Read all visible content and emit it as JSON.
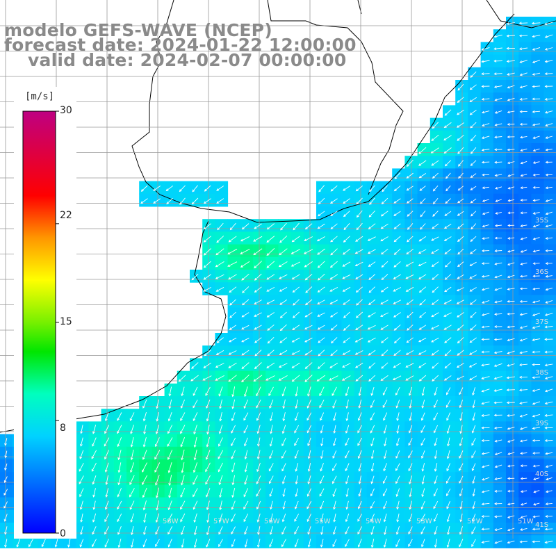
{
  "title": {
    "line1": "modelo GEFS-WAVE (NCEP)",
    "line2": "forecast date: 2024-01-22 12:00:00",
    "line3": "valid date: 2024-02-07 00:00:00"
  },
  "colorbar": {
    "unit": "[m/s]",
    "min": 0,
    "max": 30,
    "ticks": [
      "30",
      "22",
      "15",
      "8",
      "0"
    ],
    "tick_values": [
      30,
      22,
      15,
      8,
      0
    ],
    "colors": [
      "#0000ff",
      "#00c8ff",
      "#00ffc8",
      "#00e600",
      "#ffff00",
      "#ff8000",
      "#ff0000",
      "#c00080"
    ]
  },
  "grid": {
    "lat_labels": [
      "35S",
      "36S",
      "37S",
      "38S",
      "39S",
      "40S",
      "41S"
    ],
    "lon_labels": [
      "58W",
      "57W",
      "56W",
      "55W",
      "54W",
      "53W",
      "52W",
      "51W"
    ]
  },
  "colors": {
    "land": "#ffffff",
    "coast": "#000000",
    "grid": "#999999",
    "arrow": "#ffffff",
    "title": "#8a8a8a"
  }
}
